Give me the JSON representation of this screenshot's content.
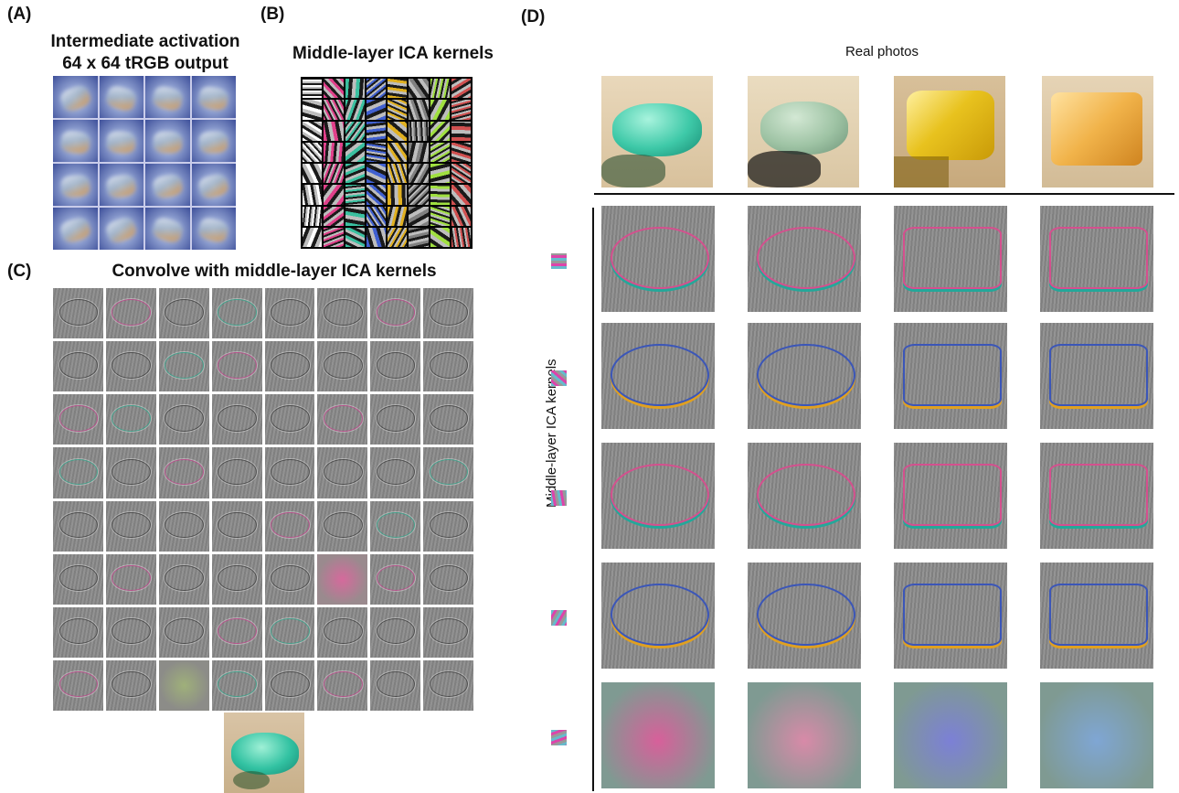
{
  "panel_a": {
    "label": "(A)",
    "title_line1": "Intermediate activation",
    "title_line2": "64 x 64 tRGB output"
  },
  "panel_b": {
    "label": "(B)",
    "title": "Middle-layer ICA kernels"
  },
  "panel_c": {
    "label": "(C)",
    "title": "Convolve with middle-layer ICA kernels"
  },
  "panel_d": {
    "label": "(D)",
    "top_label": "Real photos",
    "side_label": "Middle-layer ICA kernels"
  },
  "colors": {
    "soap_green": "#3ec9a8",
    "soap_sage": "#9ec3a4",
    "soap_yellow": "#e8c21e",
    "soap_amber": "#f1b34a",
    "wood": "#e2cfb0"
  }
}
